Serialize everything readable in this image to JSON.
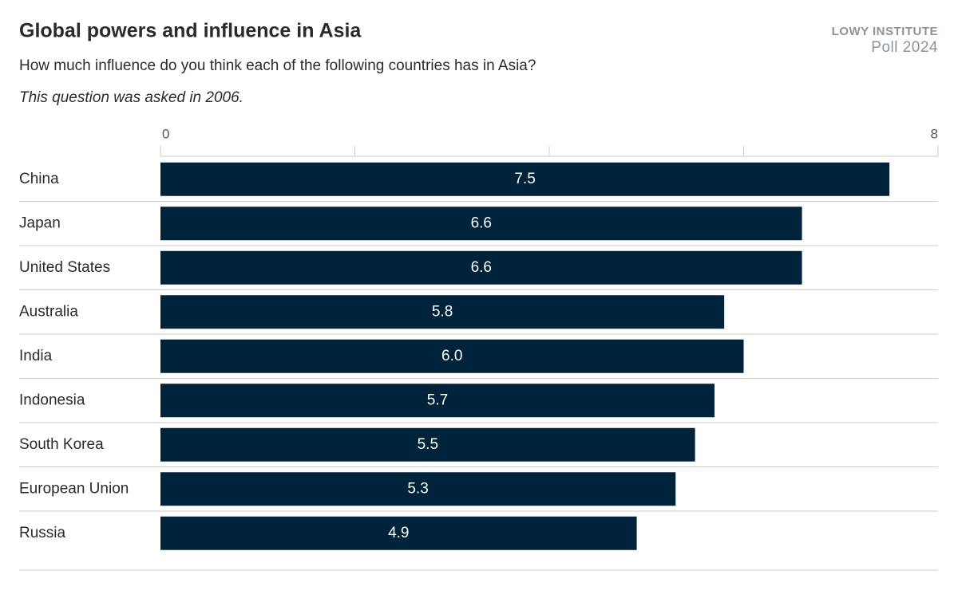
{
  "chart_data": {
    "type": "hbar",
    "title": "Global powers and influence in Asia",
    "subtitle": "How much influence do you think each of the following countries has in Asia?",
    "note": "This question was asked in 2006.",
    "brand": {
      "name": "LOWY INSTITUTE",
      "edition": "Poll 2024"
    },
    "categories": [
      "China",
      "Japan",
      "United States",
      "Australia",
      "India",
      "Indonesia",
      "South Korea",
      "European Union",
      "Russia"
    ],
    "values": [
      7.5,
      6.6,
      6.6,
      5.8,
      6.0,
      5.7,
      5.5,
      5.3,
      4.9
    ],
    "value_labels": [
      "7.5",
      "6.6",
      "6.6",
      "5.8",
      "6.0",
      "5.7",
      "5.5",
      "5.3",
      "4.9"
    ],
    "color": "#00233c",
    "xlim": [
      0,
      8
    ],
    "xticks": [
      0,
      8
    ],
    "xminor_ticks": [
      2,
      4,
      6
    ]
  }
}
